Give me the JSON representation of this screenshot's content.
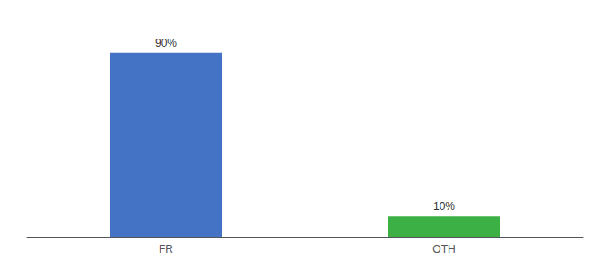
{
  "chart_data": {
    "type": "bar",
    "categories": [
      "FR",
      "OTH"
    ],
    "values": [
      90,
      10
    ],
    "value_labels": [
      "90%",
      "10%"
    ],
    "colors": [
      "#4472c4",
      "#3cb044"
    ],
    "ylim": [
      0,
      100
    ],
    "data_labels": true,
    "tick_labels": "x",
    "grid": false
  }
}
